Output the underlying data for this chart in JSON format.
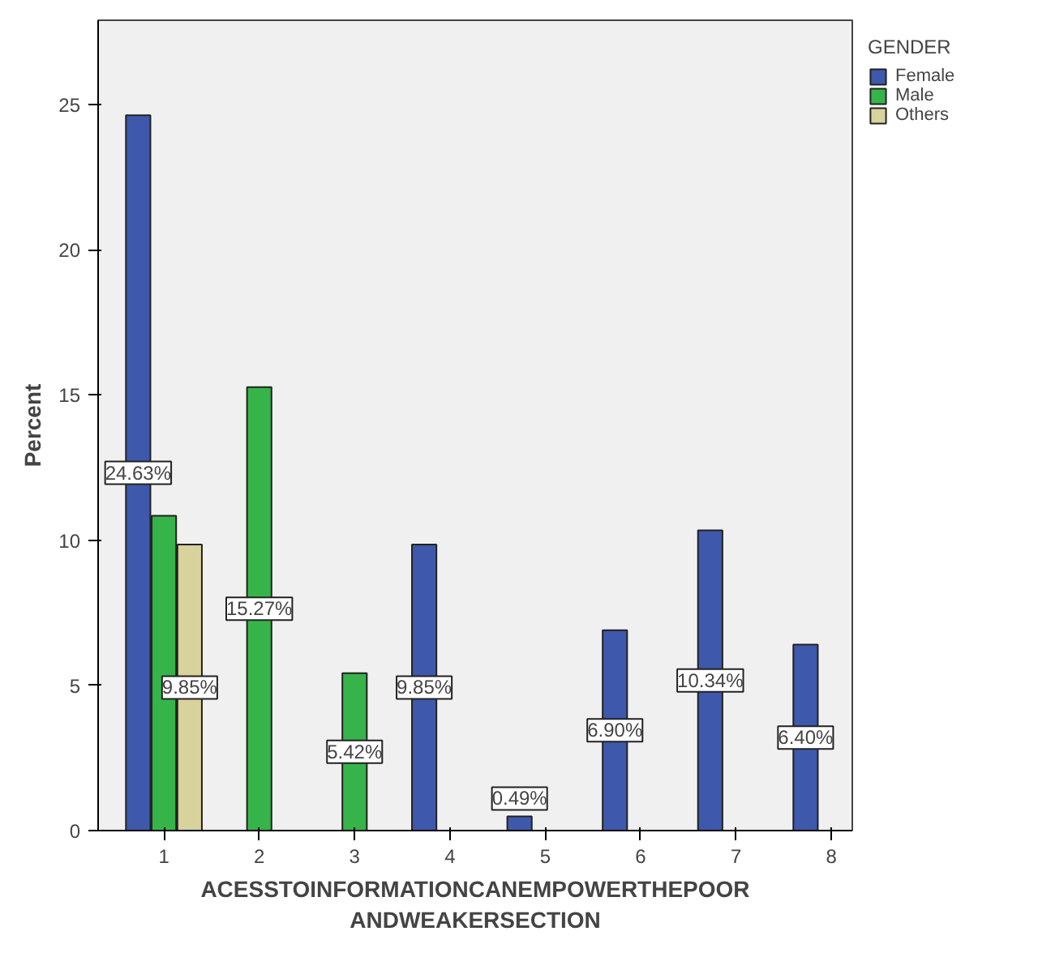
{
  "chart_data": {
    "type": "bar",
    "xlabel": "ACESSTOINFORMATIONCANEMPOWERTHEPOOR\nANDWEAKERSECTION",
    "ylabel": "Percent",
    "legend_title": "GENDER",
    "legend": "top right",
    "grid": false,
    "categories": [
      "1",
      "2",
      "3",
      "4",
      "5",
      "6",
      "7",
      "8"
    ],
    "ylim": [
      0,
      27.9
    ],
    "yticks": [
      0,
      5,
      10,
      15,
      20,
      25
    ],
    "series": [
      {
        "name": "Female",
        "color": "#3e58ac",
        "values": [
          24.63,
          null,
          null,
          9.85,
          0.49,
          6.9,
          10.34,
          6.4
        ],
        "value_labels": [
          "24.63%",
          null,
          null,
          "9.85%",
          "0.49%",
          "6.90%",
          "10.34%",
          "6.40%"
        ]
      },
      {
        "name": "Male",
        "color": "#36b44a",
        "values": [
          10.84,
          15.27,
          5.42,
          null,
          null,
          null,
          null,
          null
        ],
        "value_labels": [
          null,
          "15.27%",
          "5.42%",
          null,
          null,
          null,
          null,
          null
        ]
      },
      {
        "name": "Others",
        "color": "#d8d39c",
        "values": [
          9.85,
          null,
          null,
          null,
          null,
          null,
          null,
          null
        ],
        "value_labels": [
          "9.85%",
          null,
          null,
          null,
          null,
          null,
          null,
          null
        ]
      }
    ]
  }
}
